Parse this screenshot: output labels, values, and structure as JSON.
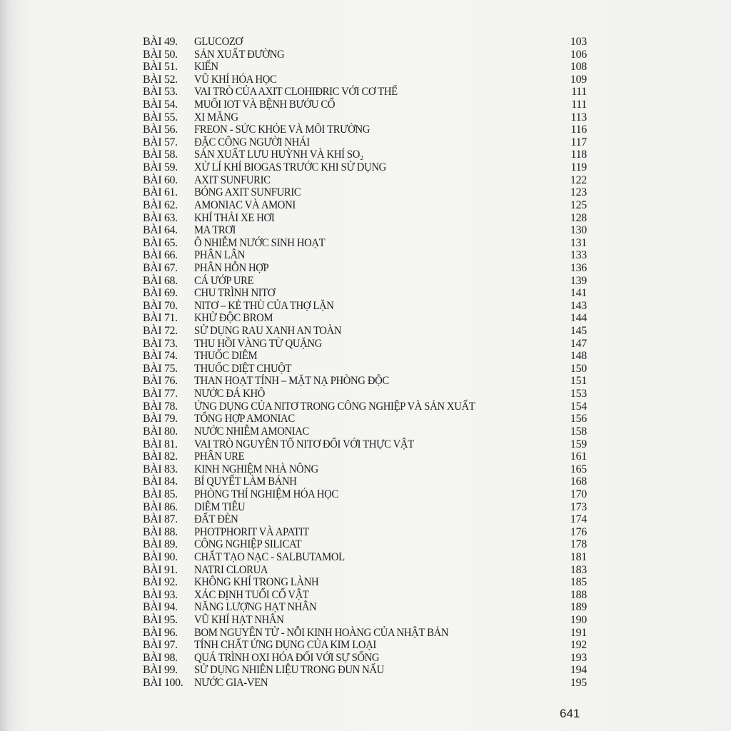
{
  "toc": [
    {
      "label": "BÀI 49.",
      "title": "GLUCOZƠ",
      "page": "103"
    },
    {
      "label": "BÀI 50.",
      "title": "SẢN XUẤT ĐƯỜNG",
      "page": "106"
    },
    {
      "label": "BÀI 51.",
      "title": "KIẾN",
      "page": "108"
    },
    {
      "label": "BÀI 52.",
      "title": "VŨ KHÍ HÓA HỌC",
      "page": "109"
    },
    {
      "label": "BÀI 53.",
      "title": "VAI TRÒ CỦA AXIT CLOHIĐRIC VỚI CƠ THỂ",
      "page": "111"
    },
    {
      "label": "BÀI 54.",
      "title": "MUỐI IOT VÀ BỆNH BƯỚU CỔ",
      "page": "111"
    },
    {
      "label": "BÀI 55.",
      "title": "XI MĂNG",
      "page": "113"
    },
    {
      "label": "BÀI 56.",
      "title": "FREON - SỨC KHỎE VÀ MÔI TRƯỜNG",
      "page": "116"
    },
    {
      "label": "BÀI 57.",
      "title": "ĐẶC CÔNG NGƯỜI NHÁI",
      "page": "117"
    },
    {
      "label": "BÀI 58.",
      "title": "SẢN XUẤT LƯU HUỲNH VÀ KHÍ SO₂",
      "page": "118"
    },
    {
      "label": "BÀI 59.",
      "title": "XỬ LÍ KHÍ BIOGAS TRƯỚC KHI SỬ DỤNG",
      "page": "119"
    },
    {
      "label": "BÀI 60.",
      "title": "AXIT SUNFURIC",
      "page": "122"
    },
    {
      "label": "BÀI 61.",
      "title": "BỎNG AXIT SUNFURIC",
      "page": "123"
    },
    {
      "label": "BÀI 62.",
      "title": "AMONIAC VÀ AMONI",
      "page": "125"
    },
    {
      "label": "BÀI 63.",
      "title": "KHÍ THẢI XE HƠI",
      "page": "128"
    },
    {
      "label": "BÀI 64.",
      "title": "MA TRƠI",
      "page": "130"
    },
    {
      "label": "BÀI 65.",
      "title": "Ô NHIỄM NƯỚC SINH HOẠT",
      "page": "131"
    },
    {
      "label": "BÀI 66.",
      "title": "PHÂN LÂN",
      "page": "133"
    },
    {
      "label": "BÀI 67.",
      "title": "PHÂN HỖN HỢP",
      "page": "136"
    },
    {
      "label": "BÀI 68.",
      "title": "CÁ ƯỚP URE",
      "page": "139"
    },
    {
      "label": "BÀI 69.",
      "title": "CHU TRÌNH NITƠ",
      "page": "141"
    },
    {
      "label": "BÀI 70.",
      "title": "NITƠ – KẺ THÙ CỦA THỢ LẶN",
      "page": "143"
    },
    {
      "label": "BÀI 71.",
      "title": "KHỬ ĐỘC BROM",
      "page": "144"
    },
    {
      "label": "BÀI 72.",
      "title": "SỬ DỤNG RAU XANH AN TOÀN",
      "page": "145"
    },
    {
      "label": "BÀI 73.",
      "title": "THU HỒI VÀNG TỪ QUẶNG",
      "page": "147"
    },
    {
      "label": "BÀI 74.",
      "title": "THUỐC DIÊM",
      "page": "148"
    },
    {
      "label": "BÀI 75.",
      "title": "THUỐC DIỆT CHUỘT",
      "page": "150"
    },
    {
      "label": "BÀI 76.",
      "title": "THAN HOẠT TÍNH – MẶT NẠ PHÒNG ĐỘC",
      "page": "151"
    },
    {
      "label": "BÀI 77.",
      "title": "NƯỚC ĐÁ KHÔ",
      "page": "153"
    },
    {
      "label": "BÀI 78.",
      "title": "ỨNG DỤNG CỦA NITƠ TRONG CÔNG NGHIỆP VÀ SẢN XUẤT",
      "page": "154"
    },
    {
      "label": "BÀI 79.",
      "title": "TỔNG HỢP AMONIAC",
      "page": "156"
    },
    {
      "label": "BÀI 80.",
      "title": "NƯỚC NHIỄM AMONIAC",
      "page": "158"
    },
    {
      "label": "BÀI 81.",
      "title": "VAI TRÒ NGUYÊN TỐ NITƠ ĐỐI VỚI THỰC VẬT",
      "page": "159"
    },
    {
      "label": "BÀI 82.",
      "title": "PHÂN URE",
      "page": "161"
    },
    {
      "label": "BÀI 83.",
      "title": "KINH NGHIỆM NHÀ NÔNG",
      "page": "165"
    },
    {
      "label": "BÀI 84.",
      "title": "BÍ QUYẾT LÀM BÁNH",
      "page": "168"
    },
    {
      "label": "BÀI 85.",
      "title": "PHÒNG THÍ NGHIỆM HÓA HỌC",
      "page": "170"
    },
    {
      "label": "BÀI 86.",
      "title": "DIÊM TIÊU",
      "page": "173"
    },
    {
      "label": "BÀI 87.",
      "title": "ĐẤT ĐÈN",
      "page": "174"
    },
    {
      "label": "BÀI 88.",
      "title": "PHOTPHORIT VÀ APATIT",
      "page": "176"
    },
    {
      "label": "BÀI 89.",
      "title": "CÔNG NGHIỆP SILICAT",
      "page": "178"
    },
    {
      "label": "BÀI 90.",
      "title": "CHẤT TẠO NẠC - SALBUTAMOL",
      "page": "181"
    },
    {
      "label": "BÀI 91.",
      "title": "NATRI CLORUA",
      "page": "183"
    },
    {
      "label": "BÀI 92.",
      "title": "KHÔNG KHÍ TRONG LÀNH",
      "page": "185"
    },
    {
      "label": "BÀI 93.",
      "title": "XÁC ĐỊNH TUỔI CỔ VẬT",
      "page": "188"
    },
    {
      "label": "BÀI 94.",
      "title": "NĂNG LƯỢNG HẠT NHÂN",
      "page": "189"
    },
    {
      "label": "BÀI 95.",
      "title": "VŨ KHÍ HẠT NHÂN",
      "page": "190"
    },
    {
      "label": "BÀI 96.",
      "title": "BOM NGUYÊN TỬ - NỖI KINH HOÀNG CỦA NHẬT BẢN",
      "page": "191"
    },
    {
      "label": "BÀI 97.",
      "title": "TÍNH CHẤT ỨNG DỤNG CỦA KIM LOẠI",
      "page": "192"
    },
    {
      "label": "BÀI 98.",
      "title": "QUÁ TRÌNH OXI HÓA ĐỐI VỚI SỰ SỐNG",
      "page": "193"
    },
    {
      "label": "BÀI 99.",
      "title": "SỬ DỤNG NHIÊN LIỆU TRONG ĐUN NẤU",
      "page": "194"
    },
    {
      "label": "BÀI 100.",
      "title": "NƯỚC GIA-VEN",
      "page": "195"
    }
  ],
  "page_number": "641"
}
